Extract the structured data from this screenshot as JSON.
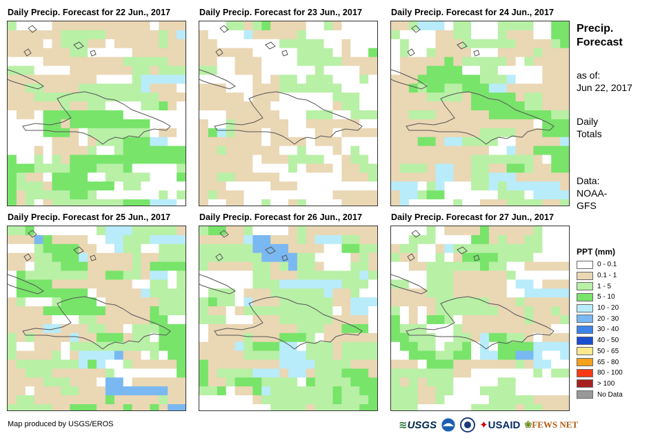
{
  "panels": [
    {
      "title": "Daily Precip. Forecast for 22 Jun., 2017"
    },
    {
      "title": "Daily Precip. Forecast for 23 Jun., 2017"
    },
    {
      "title": "Daily Precip. Forecast for 24 Jun., 2017"
    },
    {
      "title": "Daily Precip. Forecast for 25 Jun., 2017"
    },
    {
      "title": "Daily Precip. Forecast for 26 Jun., 2017"
    },
    {
      "title": "Daily Precip. Forecast for 27 Jun., 2017"
    }
  ],
  "side": {
    "title_line1": "Precip.",
    "title_line2": "Forecast",
    "asof_line1": "as of:",
    "asof_line2": "Jun 22, 2017",
    "totals_line1": "Daily",
    "totals_line2": "Totals",
    "data_line1": "Data:",
    "data_line2": "NOAA-",
    "data_line3": "GFS"
  },
  "legend": {
    "title": "PPT (mm)",
    "items": [
      {
        "label": "0 - 0.1",
        "color": "#ffffff"
      },
      {
        "label": "0.1 - 1",
        "color": "#ead7b4"
      },
      {
        "label": "1 - 5",
        "color": "#b8f0a6"
      },
      {
        "label": "5 - 10",
        "color": "#78e46a"
      },
      {
        "label": "10 - 20",
        "color": "#b8ecfa"
      },
      {
        "label": "20 - 30",
        "color": "#7ab8f2"
      },
      {
        "label": "30 - 40",
        "color": "#3c84e8"
      },
      {
        "label": "40 - 50",
        "color": "#1a4fd0"
      },
      {
        "label": "50 - 65",
        "color": "#fde98c"
      },
      {
        "label": "65 - 80",
        "color": "#f7a21a"
      },
      {
        "label": "80 - 100",
        "color": "#f83a12"
      },
      {
        "label": "> 100",
        "color": "#a82020"
      },
      {
        "label": "No Data",
        "color": "#999999"
      }
    ]
  },
  "credit": "Map produced by USGS/EROS",
  "logos": {
    "usgs": "USGS",
    "usaid": "USAID",
    "fewsnet": "FEWS NET"
  }
}
